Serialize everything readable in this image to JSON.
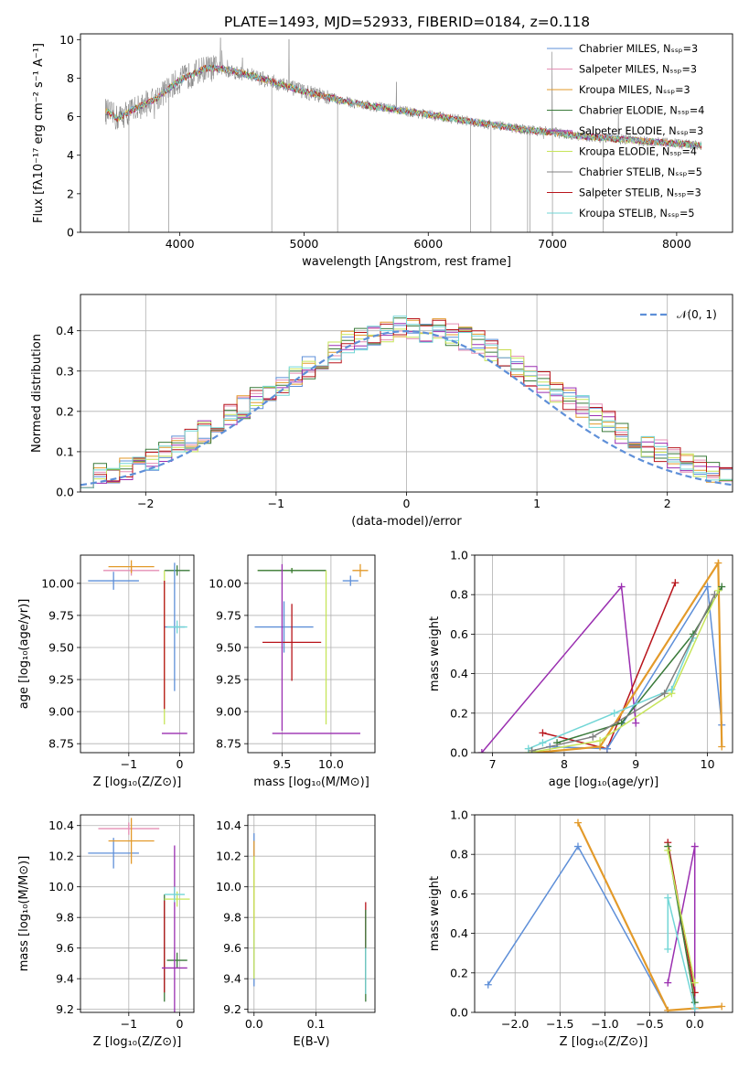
{
  "figure_title": "PLATE=1493, MJD=52933, FIBERID=0184, z=0.118",
  "colors": [
    "#5e8fd8",
    "#e58fb5",
    "#e39a2a",
    "#3a7a3a",
    "#9a2fb0",
    "#c7e55a",
    "#808080",
    "#b8141b",
    "#72d6d6"
  ],
  "chart_data": [
    {
      "id": "spectrum",
      "type": "line",
      "xlabel": "wavelength [Angstrom, rest frame]",
      "ylabel": "Flux [fλ10⁻¹⁷ erg cm⁻² s⁻¹ A⁻¹]",
      "xlim": [
        3200,
        8450
      ],
      "ylim": [
        0,
        10.3
      ],
      "xticks": [
        "4000",
        "5000",
        "6000",
        "7000",
        "8000"
      ],
      "yticks": [
        "0",
        "2",
        "4",
        "6",
        "8",
        "10"
      ],
      "legend_position": "upper-right",
      "legend": [
        "Chabrier MILES, Nₛₛₚ=3",
        "Salpeter MILES, Nₛₛₚ=3",
        "Kroupa MILES, Nₛₛₚ=3",
        "Chabrier ELODIE, Nₛₛₚ=4",
        "Salpeter ELODIE, Nₛₛₚ=3",
        "Kroupa ELODIE, Nₛₛₚ=4",
        "Chabrier STELIB, Nₛₛₚ=5",
        "Salpeter STELIB, Nₛₛₚ=3",
        "Kroupa STELIB, Nₛₛₚ=5"
      ],
      "continuum": {
        "x": [
          3400,
          3500,
          3600,
          3700,
          3800,
          3900,
          4000,
          4100,
          4200,
          4300,
          4400,
          4600,
          4800,
          5000,
          5200,
          5400,
          5600,
          5800,
          6000,
          6200,
          6400,
          6600,
          6800,
          7000,
          7200,
          7400,
          7600,
          7800,
          8000,
          8200
        ],
        "y": [
          6.3,
          5.9,
          6.3,
          6.6,
          6.9,
          7.4,
          7.9,
          8.2,
          8.5,
          8.5,
          8.4,
          8.1,
          7.7,
          7.3,
          7.0,
          6.7,
          6.5,
          6.3,
          6.1,
          5.9,
          5.7,
          5.5,
          5.3,
          5.2,
          5.0,
          4.9,
          4.8,
          4.7,
          4.6,
          4.5
        ]
      }
    },
    {
      "id": "residuals",
      "type": "histogram",
      "xlabel": "(data-model)/error",
      "ylabel": "Normed distribution",
      "xlim": [
        -2.5,
        2.5
      ],
      "ylim": [
        0,
        0.49
      ],
      "xticks": [
        "−2",
        "−1",
        "0",
        "1",
        "2"
      ],
      "yticks": [
        "0.0",
        "0.1",
        "0.2",
        "0.3",
        "0.4"
      ],
      "legend": [
        "𝒩(0, 1)"
      ],
      "bin_width": 0.1,
      "density": [
        0.04,
        0.045,
        0.05,
        0.06,
        0.07,
        0.08,
        0.095,
        0.11,
        0.13,
        0.15,
        0.17,
        0.19,
        0.21,
        0.23,
        0.25,
        0.27,
        0.29,
        0.31,
        0.33,
        0.35,
        0.37,
        0.38,
        0.39,
        0.4,
        0.41,
        0.41,
        0.4,
        0.4,
        0.39,
        0.38,
        0.37,
        0.35,
        0.33,
        0.31,
        0.29,
        0.27,
        0.25,
        0.23,
        0.21,
        0.19,
        0.17,
        0.15,
        0.13,
        0.115,
        0.1,
        0.085,
        0.07,
        0.06,
        0.05,
        0.04
      ]
    },
    {
      "id": "age-vs-Z",
      "type": "errorbar",
      "xlabel": "Z [log₁₀(Z/Z⊙)]",
      "ylabel": "age  [log₁₀(age/yr)]",
      "xlim": [
        -1.95,
        0.28
      ],
      "ylim": [
        8.68,
        10.22
      ],
      "xticks": [
        "−1",
        "0"
      ],
      "xtick_values": [
        -1,
        0
      ],
      "yticks": [
        "8.75",
        "9.00",
        "9.25",
        "9.50",
        "9.75",
        "10.00"
      ],
      "ytick_values": [
        8.75,
        9.0,
        9.25,
        9.5,
        9.75,
        10.0
      ],
      "points": [
        {
          "x": -1.3,
          "xerr": 0.5,
          "y": 10.02,
          "yerr": 0.07,
          "c": 0
        },
        {
          "x": -0.95,
          "xerr": 0.55,
          "y": 10.1,
          "yerr": 0.04,
          "c": 1
        },
        {
          "x": -0.95,
          "xerr": 0.45,
          "y": 10.13,
          "yerr": 0.05,
          "c": 2
        },
        {
          "x": -0.05,
          "xerr": 0.25,
          "y": 10.1,
          "yerr": 0.04,
          "c": 3
        },
        {
          "x": -0.1,
          "xerr": 0.25,
          "y": 8.83,
          "yerr": 0.0,
          "c": 4
        },
        {
          "x": -0.3,
          "xerr": 0.0,
          "y": 9.5,
          "yerr": 0.6,
          "c": 5
        },
        {
          "x": -0.1,
          "xerr": 0.2,
          "y": 9.66,
          "yerr": 0.5,
          "c": 0
        },
        {
          "x": -0.3,
          "xerr": 0.0,
          "y": 9.52,
          "yerr": 0.5,
          "c": 7
        },
        {
          "x": -0.05,
          "xerr": 0.2,
          "y": 9.66,
          "yerr": 0.05,
          "c": 8
        }
      ]
    },
    {
      "id": "age-vs-mass",
      "type": "errorbar",
      "xlabel": "mass [log₁₀(M/M⊙)]",
      "ylabel": "",
      "xlim": [
        9.15,
        10.45
      ],
      "ylim": [
        8.68,
        10.22
      ],
      "xticks": [
        "9.5",
        "10.0"
      ],
      "xtick_values": [
        9.5,
        10.0
      ],
      "yticks": [
        "8.75",
        "9.00",
        "9.25",
        "9.50",
        "9.75",
        "10.00"
      ],
      "ytick_values": [
        8.75,
        9.0,
        9.25,
        9.5,
        9.75,
        10.0
      ],
      "points": [
        {
          "x": 9.52,
          "xerr": 0.3,
          "y": 9.66,
          "yerr": 0.2,
          "c": 0
        },
        {
          "x": 9.6,
          "xerr": 0.3,
          "y": 9.54,
          "yerr": 0.3,
          "c": 7
        },
        {
          "x": 9.6,
          "xerr": 0.35,
          "y": 10.1,
          "yerr": 0.02,
          "c": 5
        },
        {
          "x": 9.6,
          "xerr": 0.35,
          "y": 10.1,
          "yerr": 0.02,
          "c": 3
        },
        {
          "x": 9.95,
          "xerr": 0.0,
          "y": 9.5,
          "yerr": 0.6,
          "c": 5
        },
        {
          "x": 9.5,
          "xerr": 0.0,
          "y": 9.5,
          "yerr": 0.65,
          "c": 4
        },
        {
          "x": 9.85,
          "xerr": 0.45,
          "y": 8.83,
          "yerr": 0.0,
          "c": 4
        },
        {
          "x": 10.3,
          "xerr": 0.08,
          "y": 10.1,
          "yerr": 0.05,
          "c": 2
        },
        {
          "x": 10.2,
          "xerr": 0.08,
          "y": 10.02,
          "yerr": 0.04,
          "c": 0
        }
      ]
    },
    {
      "id": "weight-vs-age",
      "type": "line",
      "xlabel": "age  [log₁₀(age/yr)]",
      "ylabel": "mass weight",
      "xlim": [
        6.75,
        10.35
      ],
      "ylim": [
        0.0,
        1.0
      ],
      "xticks": [
        "7",
        "8",
        "9",
        "10"
      ],
      "xtick_values": [
        7,
        8,
        9,
        10
      ],
      "yticks": [
        "0.0",
        "0.2",
        "0.4",
        "0.6",
        "0.8",
        "1.0"
      ],
      "ytick_values": [
        0.0,
        0.2,
        0.4,
        0.6,
        0.8,
        1.0
      ],
      "series": [
        {
          "c": 4,
          "x": [
            6.85,
            8.8,
            9.0
          ],
          "y": [
            0.0,
            0.84,
            0.15
          ]
        },
        {
          "c": 7,
          "x": [
            7.7,
            8.6,
            9.55
          ],
          "y": [
            0.1,
            0.02,
            0.86
          ]
        },
        {
          "c": 0,
          "x": [
            7.8,
            8.6,
            10.0,
            10.2
          ],
          "y": [
            0.03,
            0.02,
            0.84,
            0.14
          ]
        },
        {
          "c": 2,
          "x": [
            7.6,
            8.5,
            10.15,
            10.2
          ],
          "y": [
            0.0,
            0.03,
            0.96,
            0.03
          ]
        },
        {
          "c": 3,
          "x": [
            7.9,
            8.8,
            9.8,
            10.2
          ],
          "y": [
            0.05,
            0.15,
            0.6,
            0.84
          ]
        },
        {
          "c": 5,
          "x": [
            7.5,
            8.5,
            9.5,
            10.15
          ],
          "y": [
            0.0,
            0.06,
            0.3,
            0.82
          ]
        },
        {
          "c": 8,
          "x": [
            7.5,
            7.7,
            8.7,
            9.5,
            9.8
          ],
          "y": [
            0.02,
            0.05,
            0.2,
            0.32,
            0.58
          ]
        },
        {
          "c": 6,
          "x": [
            7.55,
            8.4,
            9.4,
            10.1
          ],
          "y": [
            0.01,
            0.08,
            0.3,
            0.8
          ]
        }
      ]
    },
    {
      "id": "mass-vs-Z",
      "type": "errorbar",
      "xlabel": "Z [log₁₀(Z/Z⊙)]",
      "ylabel": "mass [log₁₀(M/M⊙)]",
      "xlim": [
        -1.95,
        0.28
      ],
      "ylim": [
        9.18,
        10.47
      ],
      "xticks": [
        "−1",
        "0"
      ],
      "xtick_values": [
        -1,
        0
      ],
      "yticks": [
        "9.2",
        "9.4",
        "9.6",
        "9.8",
        "10.0",
        "10.2",
        "10.4"
      ],
      "ytick_values": [
        9.2,
        9.4,
        9.6,
        9.8,
        10.0,
        10.2,
        10.4
      ],
      "points": [
        {
          "x": -1.3,
          "xerr": 0.5,
          "y": 10.22,
          "yerr": 0.1,
          "c": 0
        },
        {
          "x": -1.0,
          "xerr": 0.6,
          "y": 10.38,
          "yerr": 0.04,
          "c": 1
        },
        {
          "x": -0.95,
          "xerr": 0.45,
          "y": 10.3,
          "yerr": 0.15,
          "c": 2
        },
        {
          "x": -0.3,
          "xerr": 0.0,
          "y": 9.6,
          "yerr": 0.35,
          "c": 3
        },
        {
          "x": -0.05,
          "xerr": 0.2,
          "y": 9.52,
          "yerr": 0.05,
          "c": 3
        },
        {
          "x": -0.3,
          "xerr": 0.0,
          "y": 9.61,
          "yerr": 0.3,
          "c": 7
        },
        {
          "x": -0.1,
          "xerr": 0.25,
          "y": 9.47,
          "yerr": 0.8,
          "c": 4
        },
        {
          "x": -0.05,
          "xerr": 0.25,
          "y": 9.92,
          "yerr": 0.05,
          "c": 5
        },
        {
          "x": -0.1,
          "xerr": 0.2,
          "y": 9.95,
          "yerr": 0.05,
          "c": 8
        }
      ]
    },
    {
      "id": "mass-vs-EBV",
      "type": "errorbar",
      "xlabel": "E(B-V)",
      "ylabel": "",
      "xlim": [
        -0.01,
        0.195
      ],
      "ylim": [
        9.18,
        10.47
      ],
      "xticks": [
        "0.0",
        "0.1"
      ],
      "xtick_values": [
        0.0,
        0.1
      ],
      "yticks": [
        "9.2",
        "9.4",
        "9.6",
        "9.8",
        "10.0",
        "10.2",
        "10.4"
      ],
      "ytick_values": [
        9.2,
        9.4,
        9.6,
        9.8,
        10.0,
        10.2,
        10.4
      ],
      "points": [
        {
          "x": 0.0,
          "xerr": 0.0,
          "y": 9.85,
          "yerr": 0.5,
          "c": 0
        },
        {
          "x": 0.0,
          "xerr": 0.0,
          "y": 10.0,
          "yerr": 0.3,
          "c": 2
        },
        {
          "x": 0.0,
          "xerr": 0.0,
          "y": 9.8,
          "yerr": 0.4,
          "c": 5
        },
        {
          "x": 0.18,
          "xerr": 0.0,
          "y": 9.6,
          "yerr": 0.3,
          "c": 7
        },
        {
          "x": 0.18,
          "xerr": 0.0,
          "y": 9.55,
          "yerr": 0.3,
          "c": 3
        },
        {
          "x": 0.18,
          "xerr": 0.0,
          "y": 9.45,
          "yerr": 0.15,
          "c": 8
        }
      ]
    },
    {
      "id": "weight-vs-Z",
      "type": "line",
      "xlabel": "Z [log₁₀(Z/Z⊙)]",
      "ylabel": "mass weight",
      "xlim": [
        -2.45,
        0.42
      ],
      "ylim": [
        0.0,
        1.0
      ],
      "xticks": [
        "−2.0",
        "−1.5",
        "−1.0",
        "−0.5",
        "0.0"
      ],
      "xtick_values": [
        -2.0,
        -1.5,
        -1.0,
        -0.5,
        0.0
      ],
      "yticks": [
        "0.0",
        "0.2",
        "0.4",
        "0.6",
        "0.8",
        "1.0"
      ],
      "ytick_values": [
        0.0,
        0.2,
        0.4,
        0.6,
        0.8,
        1.0
      ],
      "series": [
        {
          "c": 0,
          "x": [
            -2.3,
            -1.3,
            -0.3,
            0.0
          ],
          "y": [
            0.14,
            0.84,
            0.01,
            0.02
          ]
        },
        {
          "c": 2,
          "x": [
            -1.3,
            -0.3,
            0.3
          ],
          "y": [
            0.96,
            0.01,
            0.03
          ]
        },
        {
          "c": 4,
          "x": [
            -0.3,
            0.0,
            0.0
          ],
          "y": [
            0.15,
            0.84,
            0.0
          ]
        },
        {
          "c": 7,
          "x": [
            -0.3,
            0.0
          ],
          "y": [
            0.86,
            0.1
          ]
        },
        {
          "c": 3,
          "x": [
            -0.3,
            0.0
          ],
          "y": [
            0.84,
            0.05
          ]
        },
        {
          "c": 5,
          "x": [
            -0.3,
            0.0
          ],
          "y": [
            0.82,
            0.15
          ]
        },
        {
          "c": 8,
          "x": [
            -0.3,
            -0.3,
            0.0
          ],
          "y": [
            0.32,
            0.58,
            0.02
          ]
        }
      ]
    }
  ]
}
